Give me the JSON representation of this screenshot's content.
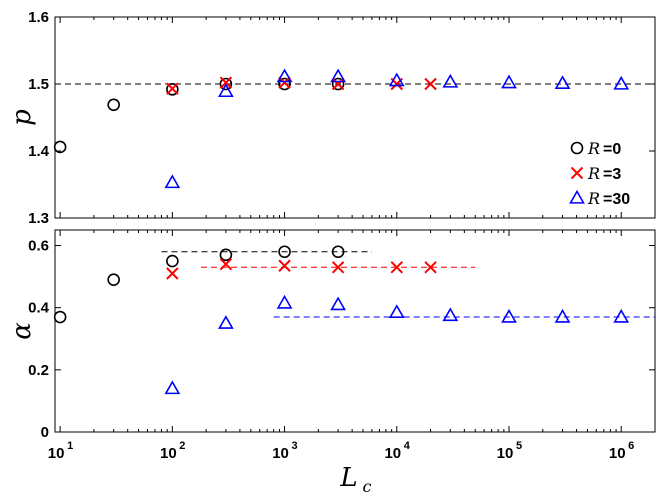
{
  "chart_data": [
    {
      "type": "scatter",
      "panel": "top",
      "ylabel": "p",
      "xlabel": "",
      "xscale": "log",
      "xlim": [
        9,
        2000000
      ],
      "ylim": [
        1.3,
        1.6
      ],
      "yticks": [
        1.3,
        1.4,
        1.5,
        1.6
      ],
      "ytick_labels": [
        "1.3",
        "1.4",
        "1.5",
        "1.6"
      ],
      "xticks": [
        10,
        100,
        1000,
        10000,
        100000,
        1000000
      ],
      "ref_lines": [
        {
          "y": 1.5,
          "x_from": 9,
          "x_to": 2000000,
          "color": "#000000"
        }
      ],
      "series": [
        {
          "name": "R=0",
          "marker": "circle",
          "color": "#000000",
          "x": [
            10,
            30,
            100,
            300,
            1000,
            3000
          ],
          "y": [
            1.406,
            1.469,
            1.492,
            1.5,
            1.5,
            1.5
          ]
        },
        {
          "name": "R=3",
          "marker": "x",
          "color": "#ff0000",
          "x": [
            100,
            300,
            1000,
            3000,
            10000,
            20000
          ],
          "y": [
            1.493,
            1.502,
            1.502,
            1.5,
            1.5,
            1.5
          ]
        },
        {
          "name": "R=30",
          "marker": "triangle",
          "color": "#0000ff",
          "x": [
            100,
            300,
            1000,
            3000,
            10000,
            30000,
            100000,
            300000,
            1000000
          ],
          "y": [
            1.353,
            1.489,
            1.511,
            1.511,
            1.505,
            1.503,
            1.502,
            1.501,
            1.5
          ]
        }
      ],
      "legend": {
        "placement": "right",
        "entries": [
          {
            "symbol": "R",
            "text": "=0",
            "marker": "circle",
            "color": "#000000"
          },
          {
            "symbol": "R",
            "text": "=3",
            "marker": "x",
            "color": "#ff0000"
          },
          {
            "symbol": "R",
            "text": "=30",
            "marker": "triangle",
            "color": "#0000ff"
          }
        ]
      }
    },
    {
      "type": "scatter",
      "panel": "bottom",
      "ylabel": "α",
      "xlabel": "L",
      "xlabel_sub": "c",
      "xscale": "log",
      "xlim": [
        9,
        2000000
      ],
      "ylim": [
        0,
        0.65
      ],
      "yticks": [
        0,
        0.2,
        0.4,
        0.6
      ],
      "ytick_labels": [
        "0",
        "0.2",
        "0.4",
        "0.6"
      ],
      "xticks": [
        10,
        100,
        1000,
        10000,
        100000,
        1000000
      ],
      "xtick_base": "10",
      "xtick_exponents": [
        "1",
        "2",
        "3",
        "4",
        "5",
        "6"
      ],
      "ref_lines": [
        {
          "y": 0.58,
          "x_from": 80,
          "x_to": 6000,
          "color": "#000000"
        },
        {
          "y": 0.53,
          "x_from": 180,
          "x_to": 50000,
          "color": "#ff0000"
        },
        {
          "y": 0.37,
          "x_from": 800,
          "x_to": 2000000,
          "color": "#0000ff"
        }
      ],
      "series": [
        {
          "name": "R=0",
          "marker": "circle",
          "color": "#000000",
          "x": [
            10,
            30,
            100,
            300,
            1000,
            3000
          ],
          "y": [
            0.37,
            0.49,
            0.55,
            0.57,
            0.58,
            0.58
          ]
        },
        {
          "name": "R=3",
          "marker": "x",
          "color": "#ff0000",
          "x": [
            100,
            300,
            1000,
            3000,
            10000,
            20000
          ],
          "y": [
            0.51,
            0.54,
            0.535,
            0.53,
            0.53,
            0.53
          ]
        },
        {
          "name": "R=30",
          "marker": "triangle",
          "color": "#0000ff",
          "x": [
            100,
            300,
            1000,
            3000,
            10000,
            30000,
            100000,
            300000,
            1000000
          ],
          "y": [
            0.14,
            0.35,
            0.415,
            0.41,
            0.385,
            0.375,
            0.37,
            0.37,
            0.37
          ]
        }
      ]
    }
  ]
}
